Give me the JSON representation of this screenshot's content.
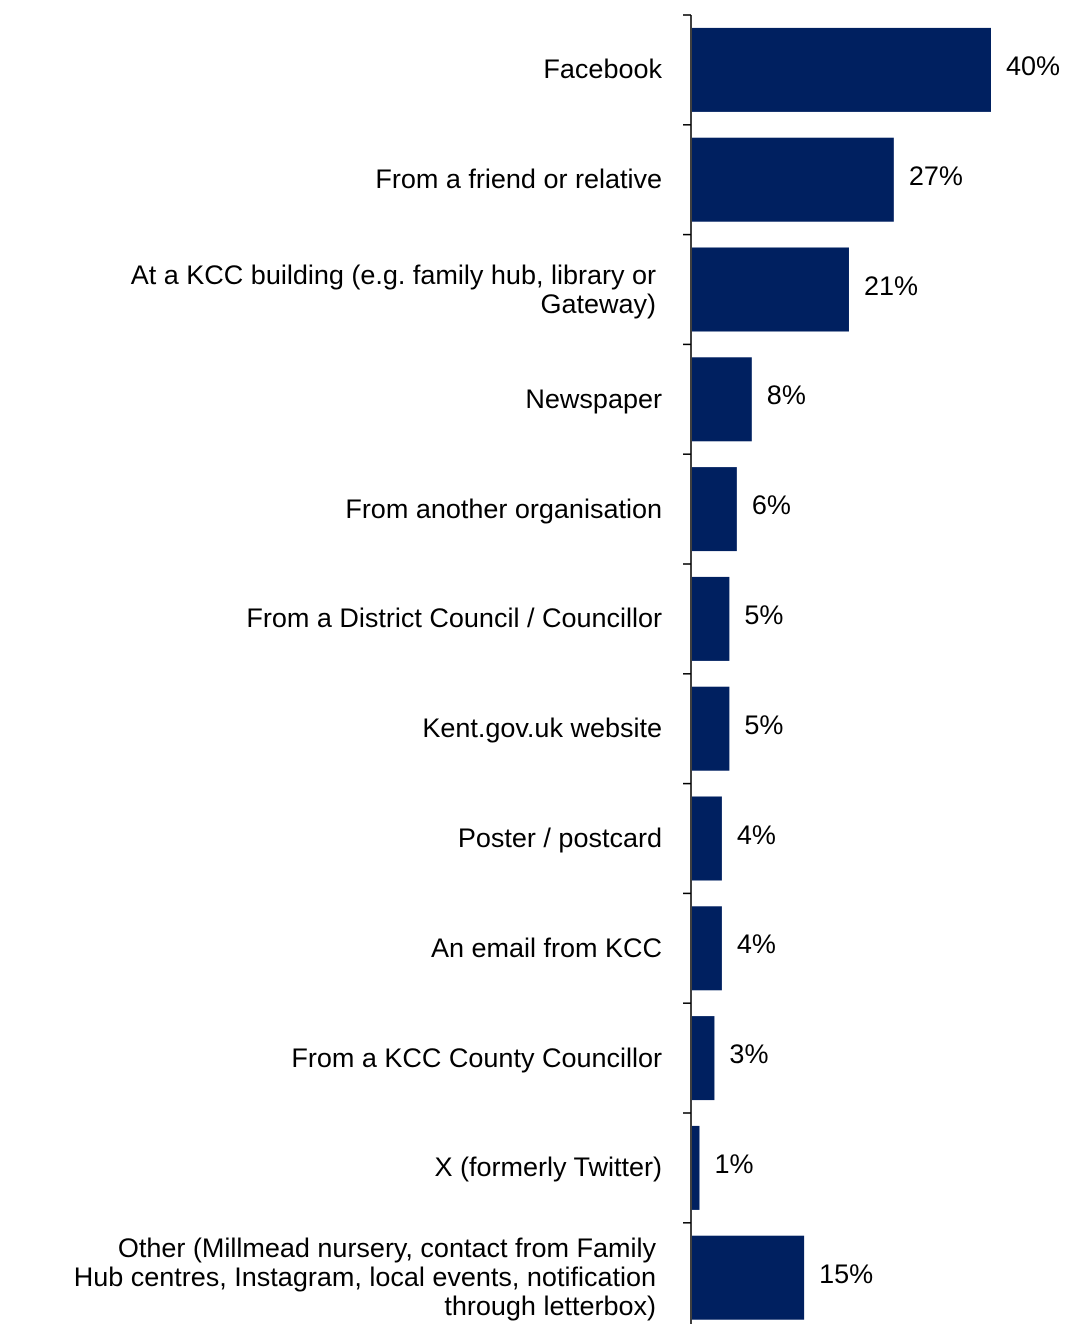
{
  "chart_data": {
    "type": "bar",
    "orientation": "horizontal",
    "categories": [
      "Facebook",
      "From a friend or relative",
      "At a KCC building (e.g. family hub, library or\nGateway)",
      "Newspaper",
      "From another organisation",
      "From a District Council / Councillor",
      "Kent.gov.uk website",
      "Poster / postcard",
      "An email from KCC",
      "From a KCC County Councillor",
      "X (formerly Twitter)",
      "Other (Millmead nursery, contact from Family\nHub centres, Instagram, local events, notification\nthrough letterbox)"
    ],
    "values": [
      40,
      27,
      21,
      8,
      6,
      5,
      5,
      4,
      4,
      3,
      1,
      15
    ],
    "data_labels": [
      "40%",
      "27%",
      "21%",
      "8%",
      "6%",
      "5%",
      "5%",
      "4%",
      "4%",
      "3%",
      "1%",
      "15%"
    ],
    "xlim": [
      0,
      40
    ],
    "bar_color": "#002060",
    "title": "",
    "xlabel": "",
    "ylabel": "",
    "grid": false,
    "legend": "none"
  }
}
